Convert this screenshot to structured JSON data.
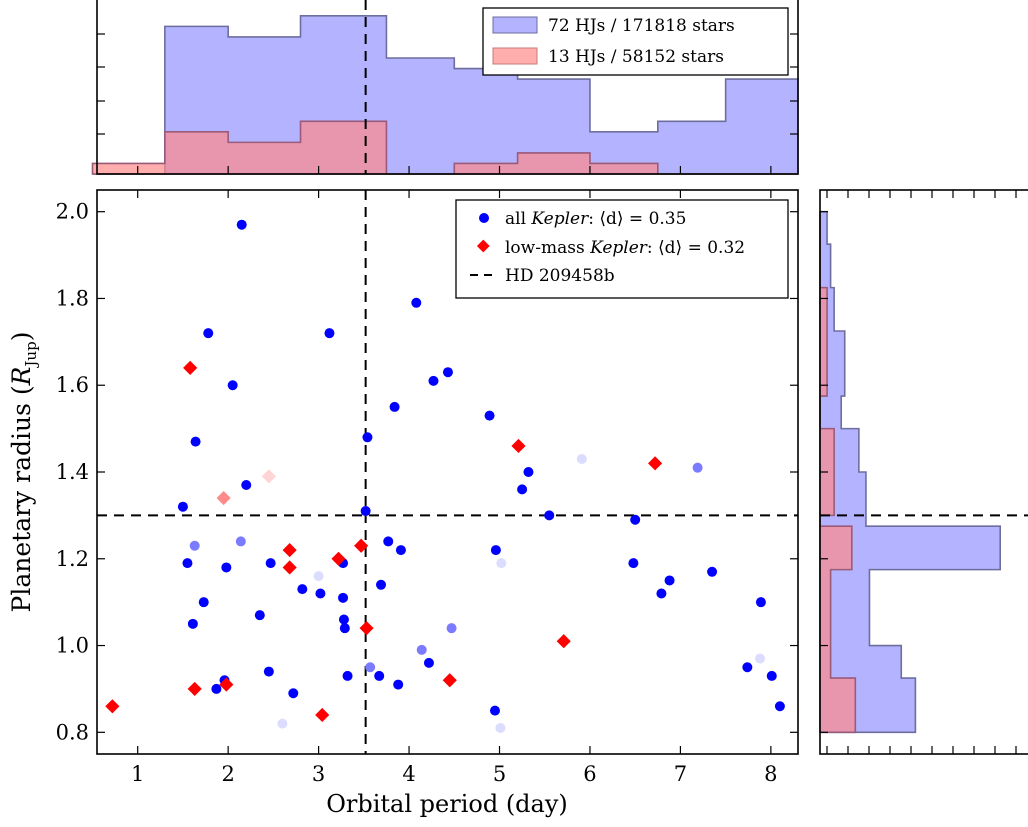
{
  "chart_data": {
    "type": "scatter",
    "xlabel": "Orbital period (day)",
    "ylabel": "Planetary radius (",
    "ylabel_math": "R",
    "ylabel_sub": "Jup",
    "ylabel_close": ")",
    "xlim": [
      0.55,
      8.3
    ],
    "ylim": [
      0.75,
      2.05
    ],
    "x_ticks": [
      1,
      2,
      3,
      4,
      5,
      6,
      7,
      8
    ],
    "y_ticks": [
      0.8,
      1.0,
      1.2,
      1.4,
      1.6,
      1.8,
      2.0
    ],
    "y_tick_labels": [
      "0.8",
      "1.0",
      "1.2",
      "1.4",
      "1.6",
      "1.8",
      "2.0"
    ],
    "reference": {
      "name": "HD 209458b",
      "period": 3.52,
      "radius": 1.3
    },
    "legend": {
      "position": "top-right",
      "entries": [
        {
          "prefix": "all ",
          "italic": "Kepler",
          "suffix": ": ⟨d⟩ = 0.35"
        },
        {
          "prefix": "low-mass ",
          "italic": "Kepler",
          "suffix": ": ⟨d⟩ = 0.32"
        },
        {
          "prefix": "HD 209458b",
          "italic": "",
          "suffix": ""
        }
      ]
    },
    "series": [
      {
        "marker": "circle",
        "color": "#0000ff",
        "points": [
          [
            2.15,
            1.97
          ],
          [
            1.78,
            1.72
          ],
          [
            3.12,
            1.72
          ],
          [
            4.08,
            1.79
          ],
          [
            2.05,
            1.6
          ],
          [
            4.27,
            1.61
          ],
          [
            4.43,
            1.63
          ],
          [
            3.84,
            1.55
          ],
          [
            1.64,
            1.47
          ],
          [
            3.54,
            1.48
          ],
          [
            4.89,
            1.53
          ],
          [
            5.32,
            1.4
          ],
          [
            5.25,
            1.36
          ],
          [
            2.2,
            1.37
          ],
          [
            1.5,
            1.32
          ],
          [
            3.52,
            1.31
          ],
          [
            5.55,
            1.3
          ],
          [
            6.5,
            1.29
          ],
          [
            1.55,
            1.19
          ],
          [
            1.98,
            1.18
          ],
          [
            2.47,
            1.19
          ],
          [
            3.27,
            1.19
          ],
          [
            3.77,
            1.24
          ],
          [
            3.91,
            1.22
          ],
          [
            4.96,
            1.22
          ],
          [
            6.48,
            1.19
          ],
          [
            1.73,
            1.1
          ],
          [
            1.61,
            1.05
          ],
          [
            2.35,
            1.07
          ],
          [
            2.82,
            1.13
          ],
          [
            3.02,
            1.12
          ],
          [
            3.27,
            1.11
          ],
          [
            3.28,
            1.06
          ],
          [
            3.29,
            1.04
          ],
          [
            3.69,
            1.14
          ],
          [
            6.88,
            1.15
          ],
          [
            6.79,
            1.12
          ],
          [
            7.35,
            1.17
          ],
          [
            7.89,
            1.1
          ],
          [
            1.87,
            0.9
          ],
          [
            1.96,
            0.92
          ],
          [
            2.45,
            0.94
          ],
          [
            2.72,
            0.89
          ],
          [
            3.32,
            0.93
          ],
          [
            3.67,
            0.93
          ],
          [
            3.88,
            0.91
          ],
          [
            4.22,
            0.96
          ],
          [
            4.95,
            0.85
          ],
          [
            7.74,
            0.95
          ],
          [
            8.01,
            0.93
          ],
          [
            8.1,
            0.86
          ]
        ]
      },
      {
        "marker": "circle",
        "color": "#7b7bff",
        "points": [
          [
            1.63,
            1.23
          ],
          [
            2.14,
            1.24
          ],
          [
            7.19,
            1.41
          ],
          [
            4.14,
            0.99
          ],
          [
            4.47,
            1.04
          ],
          [
            3.57,
            0.95
          ]
        ]
      },
      {
        "marker": "circle",
        "color": "#dcdcff",
        "points": [
          [
            5.91,
            1.43
          ],
          [
            5.02,
            1.19
          ],
          [
            3.0,
            1.16
          ],
          [
            7.88,
            0.97
          ],
          [
            5.01,
            0.81
          ],
          [
            2.6,
            0.82
          ]
        ]
      },
      {
        "marker": "diamond",
        "color": "#ff0000",
        "points": [
          [
            1.58,
            1.64
          ],
          [
            5.21,
            1.46
          ],
          [
            6.72,
            1.42
          ],
          [
            2.68,
            1.22
          ],
          [
            2.68,
            1.18
          ],
          [
            3.22,
            1.2
          ],
          [
            3.47,
            1.23
          ],
          [
            3.53,
            1.04
          ],
          [
            5.71,
            1.01
          ],
          [
            1.63,
            0.9
          ],
          [
            1.98,
            0.91
          ],
          [
            3.04,
            0.84
          ],
          [
            4.45,
            0.92
          ],
          [
            0.72,
            0.86
          ]
        ]
      },
      {
        "marker": "diamond",
        "color": "#ff8a8a",
        "points": [
          [
            1.95,
            1.34
          ]
        ]
      },
      {
        "marker": "diamond",
        "color": "#ffd4d4",
        "points": [
          [
            2.45,
            1.39
          ]
        ]
      }
    ],
    "top_histogram": {
      "bin_edges": [
        0.5,
        1.3,
        2.0,
        2.8,
        3.75,
        4.5,
        5.2,
        6.0,
        6.75,
        7.5,
        8.3
      ],
      "series": [
        {
          "name": "72 HJs / 171818 stars",
          "color": "#8a8aff",
          "values": [
            0,
            14,
            13,
            15,
            11,
            10,
            9,
            4,
            5,
            9
          ]
        },
        {
          "name": "13 HJs / 58152 stars",
          "color": "#ff8a8a",
          "values": [
            1,
            4,
            3,
            5,
            0,
            1,
            2,
            1,
            0,
            0
          ]
        }
      ]
    },
    "right_histogram": {
      "bin_edges": [
        0.8,
        0.925,
        1.0,
        1.175,
        1.275,
        1.3,
        1.4,
        1.5,
        1.575,
        1.725,
        1.825,
        1.925,
        2.0
      ],
      "series": [
        {
          "name": "72 HJs / 171818 stars",
          "color": "#8a8aff",
          "values": [
            27,
            23,
            14,
            51,
            13,
            13,
            11,
            6,
            7,
            4,
            3,
            2
          ]
        },
        {
          "name": "13 HJs / 58152 stars",
          "color": "#ff8a8a",
          "values": [
            10,
            3,
            3,
            9,
            0,
            4,
            4,
            0,
            2,
            2,
            0,
            0
          ]
        }
      ]
    }
  }
}
